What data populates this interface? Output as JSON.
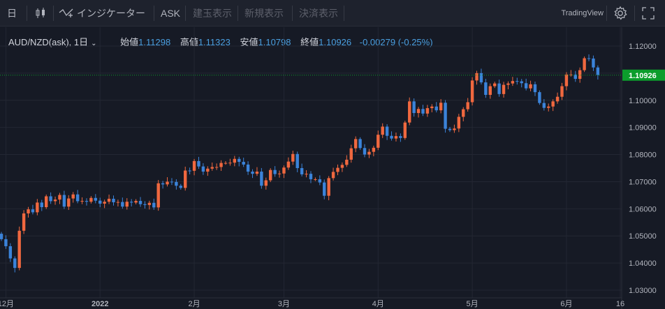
{
  "toolbar": {
    "period": "日",
    "indicators": "インジケーター",
    "ask": "ASK",
    "open_order": "建玉表示",
    "new_order": "新規表示",
    "settle_order": "決済表示",
    "brand": "TradingView"
  },
  "legend": {
    "symbol": "AUD/NZD(ask), 1日",
    "open_label": "始値",
    "open": "1.11298",
    "high_label": "高値",
    "high": "1.11323",
    "low_label": "安値",
    "low": "1.10798",
    "close_label": "終値",
    "close": "1.10926",
    "change": "-0.00279 (-0.25%)"
  },
  "colors": {
    "up": "#f0683f",
    "down": "#3b83d9",
    "last_price": "#0c9d2c",
    "background": "#161a25"
  },
  "chart_data": {
    "type": "candlestick",
    "title": "AUD/NZD(ask), 1日",
    "ylim": [
      1.03,
      1.125
    ],
    "y_ticks": [
      "1.03000",
      "1.04000",
      "1.05000",
      "1.06000",
      "1.07000",
      "1.08000",
      "1.09000",
      "1.10000",
      "1.11000",
      "1.12000"
    ],
    "x_ticks": [
      {
        "label": "12月",
        "bar": 1
      },
      {
        "label": "2022",
        "bar": 22
      },
      {
        "label": "2月",
        "bar": 43
      },
      {
        "label": "3月",
        "bar": 63
      },
      {
        "label": "4月",
        "bar": 84
      },
      {
        "label": "5月",
        "bar": 105
      },
      {
        "label": "6月",
        "bar": 126
      },
      {
        "label": "16",
        "bar": 138
      }
    ],
    "last_price": "1.10926",
    "closes": [
      1.0488,
      1.0462,
      1.0417,
      1.0382,
      1.0519,
      1.0583,
      1.0598,
      1.0587,
      1.0623,
      1.0606,
      1.0646,
      1.0628,
      1.0634,
      1.0651,
      1.0608,
      1.0638,
      1.0653,
      1.0628,
      1.0629,
      1.0626,
      1.064,
      1.063,
      1.0619,
      1.0626,
      1.0637,
      1.0624,
      1.0625,
      1.0608,
      1.0626,
      1.0623,
      1.0629,
      1.0617,
      1.0614,
      1.0622,
      1.0605,
      1.0694,
      1.069,
      1.07,
      1.0699,
      1.0685,
      1.0677,
      1.0741,
      1.074,
      1.0776,
      1.0756,
      1.0737,
      1.0748,
      1.0754,
      1.0754,
      1.0769,
      1.0769,
      1.077,
      1.0784,
      1.0773,
      1.0763,
      1.0737,
      1.0729,
      1.0737,
      1.0685,
      1.0705,
      1.0743,
      1.0728,
      1.073,
      1.0752,
      1.0774,
      1.0802,
      1.075,
      1.0727,
      1.0729,
      1.0709,
      1.0709,
      1.0697,
      1.0648,
      1.0713,
      1.0736,
      1.0751,
      1.0762,
      1.0781,
      1.0823,
      1.0857,
      1.0824,
      1.08,
      1.081,
      1.0825,
      1.0873,
      1.0903,
      1.0869,
      1.0859,
      1.0868,
      1.0861,
      1.0918,
      1.0996,
      1.0953,
      1.0968,
      1.0951,
      1.0971,
      1.0977,
      1.0963,
      1.0991,
      1.0895,
      1.089,
      1.0896,
      1.0939,
      1.0967,
      1.0993,
      1.1073,
      1.11,
      1.1066,
      1.102,
      1.1052,
      1.1062,
      1.1023,
      1.1057,
      1.1062,
      1.1071,
      1.107,
      1.1063,
      1.1044,
      1.1059,
      1.103,
      1.099,
      1.0972,
      1.0977,
      1.0996,
      1.1013,
      1.1052,
      1.1095,
      1.1095,
      1.1079,
      1.1111,
      1.1155,
      1.1154,
      1.1121,
      1.1093
    ]
  }
}
